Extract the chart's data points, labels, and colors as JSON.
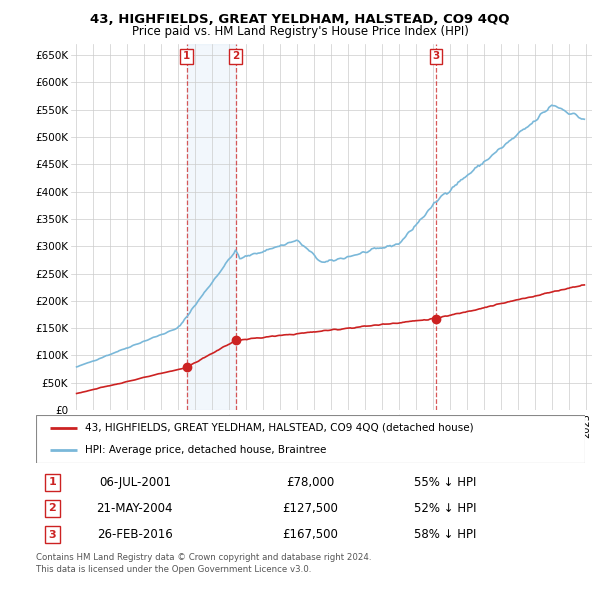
{
  "title1": "43, HIGHFIELDS, GREAT YELDHAM, HALSTEAD, CO9 4QQ",
  "title2": "Price paid vs. HM Land Registry's House Price Index (HPI)",
  "ylabel_ticks": [
    "£0",
    "£50K",
    "£100K",
    "£150K",
    "£200K",
    "£250K",
    "£300K",
    "£350K",
    "£400K",
    "£450K",
    "£500K",
    "£550K",
    "£600K",
    "£650K"
  ],
  "ytick_values": [
    0,
    50000,
    100000,
    150000,
    200000,
    250000,
    300000,
    350000,
    400000,
    450000,
    500000,
    550000,
    600000,
    650000
  ],
  "xlim_start": 1994.7,
  "xlim_end": 2025.3,
  "ylim_min": 0,
  "ylim_max": 670000,
  "legend_line1": "43, HIGHFIELDS, GREAT YELDHAM, HALSTEAD, CO9 4QQ (detached house)",
  "legend_line2": "HPI: Average price, detached house, Braintree",
  "sale1_date": "06-JUL-2001",
  "sale1_price": "£78,000",
  "sale1_hpi": "55% ↓ HPI",
  "sale1_year": 2001.5,
  "sale1_price_val": 78000,
  "sale2_date": "21-MAY-2004",
  "sale2_price": "£127,500",
  "sale2_hpi": "52% ↓ HPI",
  "sale2_year": 2004.38,
  "sale2_price_val": 127500,
  "sale3_date": "26-FEB-2016",
  "sale3_price": "£167,500",
  "sale3_hpi": "58% ↓ HPI",
  "sale3_year": 2016.15,
  "sale3_price_val": 167500,
  "footer1": "Contains HM Land Registry data © Crown copyright and database right 2024.",
  "footer2": "This data is licensed under the Open Government Licence v3.0.",
  "hpi_color": "#7ab8d9",
  "price_color": "#cc2222",
  "vline_color": "#cc2222",
  "shade_color": "#ddeeff"
}
